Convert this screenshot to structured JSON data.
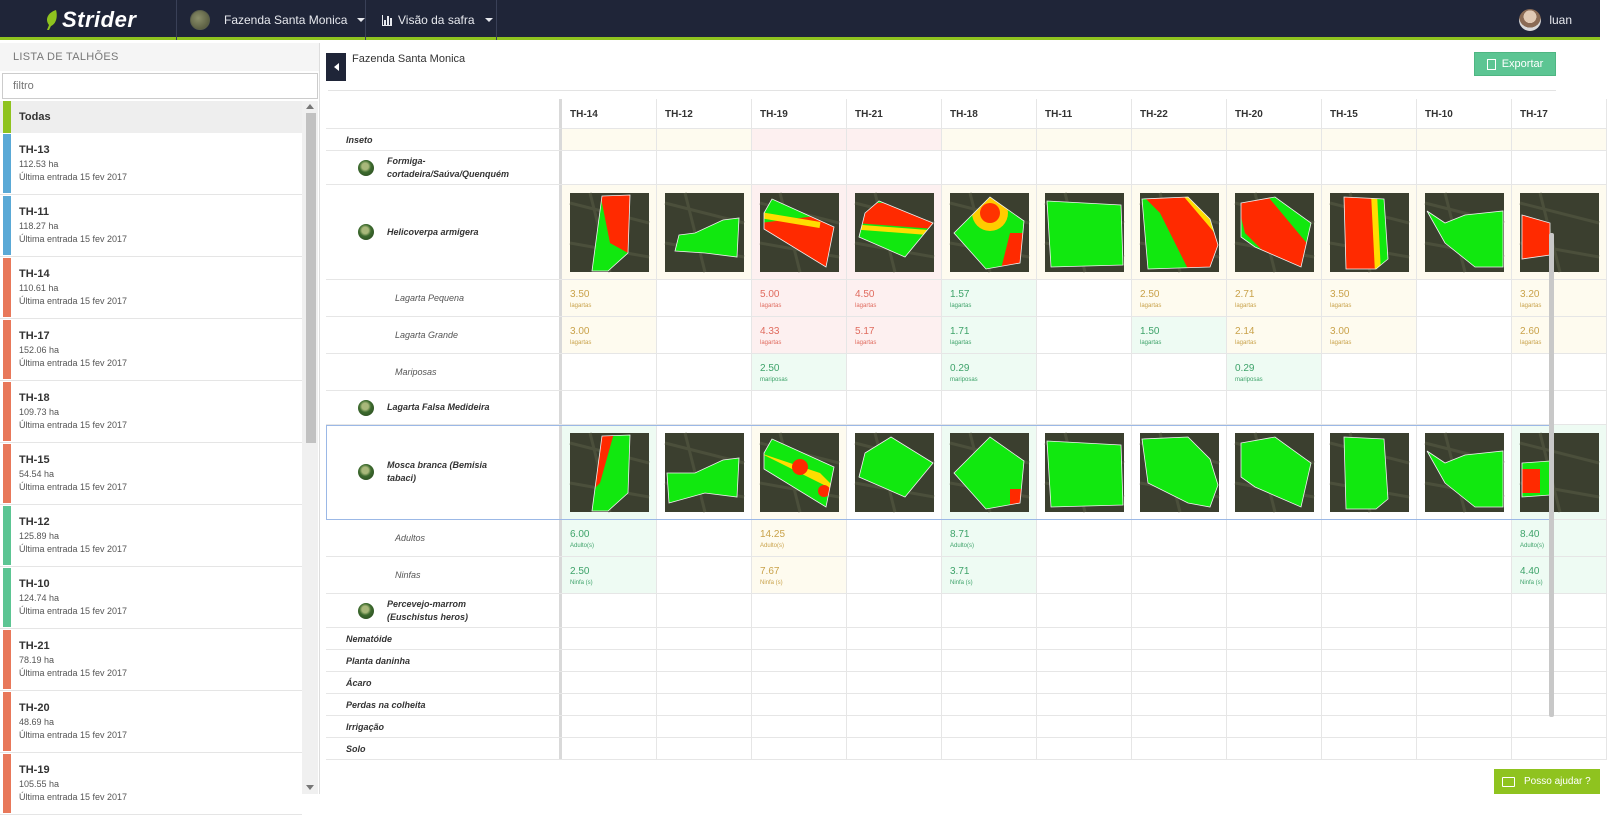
{
  "app": {
    "name": "Strider"
  },
  "topbar": {
    "farm_label": "Fazenda Santa Monica",
    "view_label": "Visão da safra",
    "user": "luan"
  },
  "sidebar": {
    "title": "LISTA DE TALHÕES",
    "filter_placeholder": "filtro",
    "all_label": "Todas",
    "items": [
      {
        "name": "TH-13",
        "area": "112.53 ha",
        "last": "Última entrada 15 fev 2017",
        "color": "#5aa9d6"
      },
      {
        "name": "TH-11",
        "area": "118.27 ha",
        "last": "Última entrada 15 fev 2017",
        "color": "#5aa9d6"
      },
      {
        "name": "TH-14",
        "area": "110.61 ha",
        "last": "Última entrada 15 fev 2017",
        "color": "#e8785a"
      },
      {
        "name": "TH-17",
        "area": "152.06 ha",
        "last": "Última entrada 15 fev 2017",
        "color": "#e8785a"
      },
      {
        "name": "TH-18",
        "area": "109.73 ha",
        "last": "Última entrada 15 fev 2017",
        "color": "#e8785a"
      },
      {
        "name": "TH-15",
        "area": "54.54 ha",
        "last": "Última entrada 15 fev 2017",
        "color": "#e8785a"
      },
      {
        "name": "TH-12",
        "area": "125.89 ha",
        "last": "Última entrada 15 fev 2017",
        "color": "#5cc593"
      },
      {
        "name": "TH-10",
        "area": "124.74 ha",
        "last": "Última entrada 15 fev 2017",
        "color": "#5cc593"
      },
      {
        "name": "TH-21",
        "area": "78.19 ha",
        "last": "Última entrada 15 fev 2017",
        "color": "#e8785a"
      },
      {
        "name": "TH-20",
        "area": "48.69 ha",
        "last": "Última entrada 15 fev 2017",
        "color": "#e8785a"
      },
      {
        "name": "TH-19",
        "area": "105.55 ha",
        "last": "Última entrada 15 fev 2017",
        "color": "#e8785a"
      }
    ]
  },
  "main": {
    "farm_title": "Fazenda Santa Monica",
    "export_label": "Exportar"
  },
  "columns": [
    "TH-14",
    "TH-12",
    "TH-19",
    "TH-21",
    "TH-18",
    "TH-11",
    "TH-22",
    "TH-20",
    "TH-15",
    "TH-10",
    "TH-17"
  ],
  "rows": [
    {
      "kind": "cat",
      "label": "Inseto",
      "tints": [
        "y",
        "y",
        "r",
        "r",
        "y",
        "y",
        "y",
        "y",
        "y",
        "y",
        "y"
      ]
    },
    {
      "kind": "pest",
      "label": "Formiga-cortadeira/Saúva/Quenquém"
    },
    {
      "kind": "maps",
      "label": "Helicoverpa armigera",
      "maps": [
        "s1",
        "s2",
        "s3",
        "s4",
        "s5",
        "s6",
        "s7",
        "s8",
        "s9",
        "s10",
        "s11"
      ],
      "tints": [
        "y",
        "y",
        "r",
        "r",
        "y",
        "y",
        "y",
        "y",
        "y",
        "y",
        "y"
      ]
    },
    {
      "kind": "sub",
      "label": "Lagarta Pequena",
      "cells": [
        {
          "v": "3.50",
          "u": "lagartas",
          "t": "y"
        },
        null,
        {
          "v": "5.00",
          "u": "lagartas",
          "t": "r"
        },
        {
          "v": "4.50",
          "u": "lagartas",
          "t": "r"
        },
        {
          "v": "1.57",
          "u": "lagartas",
          "t": "g"
        },
        null,
        {
          "v": "2.50",
          "u": "lagartas",
          "t": "y"
        },
        {
          "v": "2.71",
          "u": "lagartas",
          "t": "y"
        },
        {
          "v": "3.50",
          "u": "lagartas",
          "t": "y"
        },
        null,
        {
          "v": "3.20",
          "u": "lagartas",
          "t": "y"
        }
      ]
    },
    {
      "kind": "sub",
      "label": "Lagarta Grande",
      "cells": [
        {
          "v": "3.00",
          "u": "lagartas",
          "t": "y"
        },
        null,
        {
          "v": "4.33",
          "u": "lagartas",
          "t": "r"
        },
        {
          "v": "5.17",
          "u": "lagartas",
          "t": "r"
        },
        {
          "v": "1.71",
          "u": "lagartas",
          "t": "g"
        },
        null,
        {
          "v": "1.50",
          "u": "lagartas",
          "t": "g"
        },
        {
          "v": "2.14",
          "u": "lagartas",
          "t": "y"
        },
        {
          "v": "3.00",
          "u": "lagartas",
          "t": "y"
        },
        null,
        {
          "v": "2.60",
          "u": "lagartas",
          "t": "y"
        }
      ]
    },
    {
      "kind": "sub",
      "label": "Mariposas",
      "cells": [
        null,
        null,
        {
          "v": "2.50",
          "u": "mariposas",
          "t": "g"
        },
        null,
        {
          "v": "0.29",
          "u": "mariposas",
          "t": "g"
        },
        null,
        null,
        {
          "v": "0.29",
          "u": "mariposas",
          "t": "g"
        },
        null,
        null,
        null
      ]
    },
    {
      "kind": "pest",
      "label": "Lagarta Falsa Medideira"
    },
    {
      "kind": "maps",
      "label": "Mosca branca (Bemisia tabaci)",
      "maps": [
        "m1",
        "m2",
        "m3",
        "m4",
        "m5",
        "m6",
        "m7",
        "m8",
        "m9",
        "m10",
        "m11"
      ],
      "tints": [
        "g",
        "n",
        "y",
        "n",
        "g",
        "n",
        "n",
        "n",
        "n",
        "n",
        "g"
      ]
    },
    {
      "kind": "sub",
      "label": "Adultos",
      "cells": [
        {
          "v": "6.00",
          "u": "Adulto(s)",
          "t": "g"
        },
        null,
        {
          "v": "14.25",
          "u": "Adulto(s)",
          "t": "y"
        },
        null,
        {
          "v": "8.71",
          "u": "Adulto(s)",
          "t": "g"
        },
        null,
        null,
        null,
        null,
        null,
        {
          "v": "8.40",
          "u": "Adulto(s)",
          "t": "g"
        }
      ]
    },
    {
      "kind": "sub",
      "label": "Ninfas",
      "cells": [
        {
          "v": "2.50",
          "u": "Ninfa (s)",
          "t": "g"
        },
        null,
        {
          "v": "7.67",
          "u": "Ninfa (s)",
          "t": "y"
        },
        null,
        {
          "v": "3.71",
          "u": "Ninfa (s)",
          "t": "g"
        },
        null,
        null,
        null,
        null,
        null,
        {
          "v": "4.40",
          "u": "Ninfa (s)",
          "t": "g"
        }
      ]
    },
    {
      "kind": "pest",
      "label": "Percevejo-marrom (Euschistus heros)"
    },
    {
      "kind": "cat",
      "label": "Nematóide"
    },
    {
      "kind": "cat",
      "label": "Planta daninha"
    },
    {
      "kind": "cat",
      "label": "Ácaro"
    },
    {
      "kind": "cat",
      "label": "Perdas na colheita"
    },
    {
      "kind": "cat",
      "label": "Irrigação"
    },
    {
      "kind": "cat",
      "label": "Solo"
    }
  ],
  "help_label": "Posso ajudar ?",
  "colors": {
    "accent": "#8fc31f",
    "topbar": "#1f2538",
    "export": "#5cc593"
  }
}
